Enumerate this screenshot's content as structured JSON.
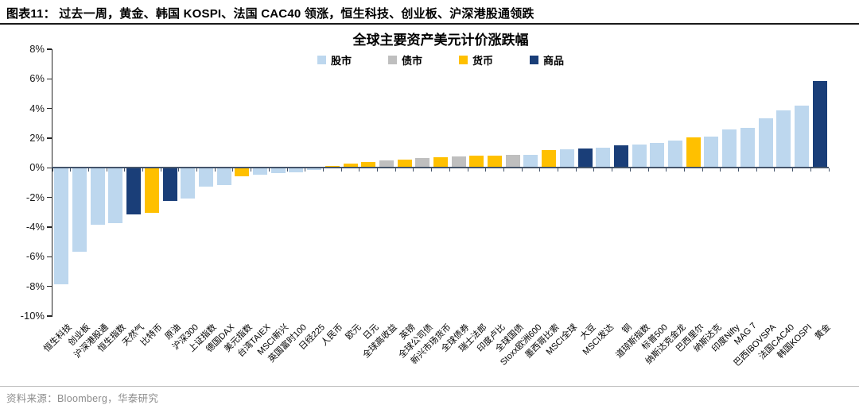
{
  "header": {
    "title": "图表11：  过去一周，黄金、韩国 KOSPI、法国 CAC40 领涨，恒生科技、创业板、沪深港股通领跌"
  },
  "footer": {
    "source": "资料来源：Bloomberg，华泰研究"
  },
  "colors": {
    "stock": "#BDD7EE",
    "bond": "#BFBFBF",
    "currency": "#FFC000",
    "commodity": "#1A3E78",
    "zero_axis": "#44546A",
    "y_axis": "#262626"
  },
  "chart_data": {
    "type": "bar",
    "title": "全球主要资产美元计价涨跌幅",
    "xlabel": "",
    "ylabel": "",
    "ylim": [
      -10,
      8
    ],
    "grid": false,
    "legend_position": "top-center",
    "yticks": [
      8,
      6,
      4,
      2,
      0,
      -2,
      -4,
      -6,
      -8,
      -10
    ],
    "ytick_labels": [
      "8%",
      "6%",
      "4%",
      "2%",
      "0%",
      "-2%",
      "-4%",
      "-6%",
      "-8%",
      "-10%"
    ],
    "legend": [
      {
        "label": "股市",
        "group": "stock"
      },
      {
        "label": "债市",
        "group": "bond"
      },
      {
        "label": "货币",
        "group": "currency"
      },
      {
        "label": "商品",
        "group": "commodity"
      }
    ],
    "points": [
      {
        "label": "恒生科技",
        "value": -7.8,
        "group": "stock"
      },
      {
        "label": "创业板",
        "value": -5.6,
        "group": "stock"
      },
      {
        "label": "沪深港股通",
        "value": -3.8,
        "group": "stock"
      },
      {
        "label": "恒生指数",
        "value": -3.7,
        "group": "stock"
      },
      {
        "label": "天然气",
        "value": -3.1,
        "group": "commodity"
      },
      {
        "label": "比特币",
        "value": -3.0,
        "group": "currency"
      },
      {
        "label": "原油",
        "value": -2.2,
        "group": "commodity"
      },
      {
        "label": "沪深300",
        "value": -2.0,
        "group": "stock"
      },
      {
        "label": "上证指数",
        "value": -1.2,
        "group": "stock"
      },
      {
        "label": "德国DAX",
        "value": -1.1,
        "group": "stock"
      },
      {
        "label": "美元指数",
        "value": -0.5,
        "group": "currency"
      },
      {
        "label": "台湾TAIEX",
        "value": -0.4,
        "group": "stock"
      },
      {
        "label": "MSCI新兴",
        "value": -0.3,
        "group": "stock"
      },
      {
        "label": "英国富时100",
        "value": -0.25,
        "group": "stock"
      },
      {
        "label": "日经225",
        "value": -0.08,
        "group": "stock"
      },
      {
        "label": "人民币",
        "value": 0.1,
        "group": "currency"
      },
      {
        "label": "欧元",
        "value": 0.3,
        "group": "currency"
      },
      {
        "label": "日元",
        "value": 0.4,
        "group": "currency"
      },
      {
        "label": "全球高收益",
        "value": 0.5,
        "group": "bond"
      },
      {
        "label": "英镑",
        "value": 0.55,
        "group": "currency"
      },
      {
        "label": "全球公司债",
        "value": 0.65,
        "group": "bond"
      },
      {
        "label": "新兴市场货币",
        "value": 0.7,
        "group": "currency"
      },
      {
        "label": "全球债券",
        "value": 0.75,
        "group": "bond"
      },
      {
        "label": "瑞士法郎",
        "value": 0.8,
        "group": "currency"
      },
      {
        "label": "印度卢比",
        "value": 0.8,
        "group": "currency"
      },
      {
        "label": "全球国债",
        "value": 0.85,
        "group": "bond"
      },
      {
        "label": "Stoxx欧洲600",
        "value": 0.9,
        "group": "stock"
      },
      {
        "label": "墨西哥比索",
        "value": 1.2,
        "group": "currency"
      },
      {
        "label": "MSCI全球",
        "value": 1.25,
        "group": "stock"
      },
      {
        "label": "大豆",
        "value": 1.3,
        "group": "commodity"
      },
      {
        "label": "MSCI发达",
        "value": 1.35,
        "group": "stock"
      },
      {
        "label": "铜",
        "value": 1.5,
        "group": "commodity"
      },
      {
        "label": "道琼斯指数",
        "value": 1.55,
        "group": "stock"
      },
      {
        "label": "标普500",
        "value": 1.7,
        "group": "stock"
      },
      {
        "label": "纳斯达克金龙",
        "value": 1.85,
        "group": "stock"
      },
      {
        "label": "巴西里尔",
        "value": 2.05,
        "group": "currency"
      },
      {
        "label": "纳斯达克",
        "value": 2.1,
        "group": "stock"
      },
      {
        "label": "印度Nifty",
        "value": 2.6,
        "group": "stock"
      },
      {
        "label": "MAG 7",
        "value": 2.7,
        "group": "stock"
      },
      {
        "label": "巴西IBOVSPA",
        "value": 3.35,
        "group": "stock"
      },
      {
        "label": "法国CAC40",
        "value": 3.85,
        "group": "stock"
      },
      {
        "label": "韩国KOSPI",
        "value": 4.2,
        "group": "stock"
      },
      {
        "label": "黄金",
        "value": 5.85,
        "group": "commodity"
      }
    ]
  }
}
